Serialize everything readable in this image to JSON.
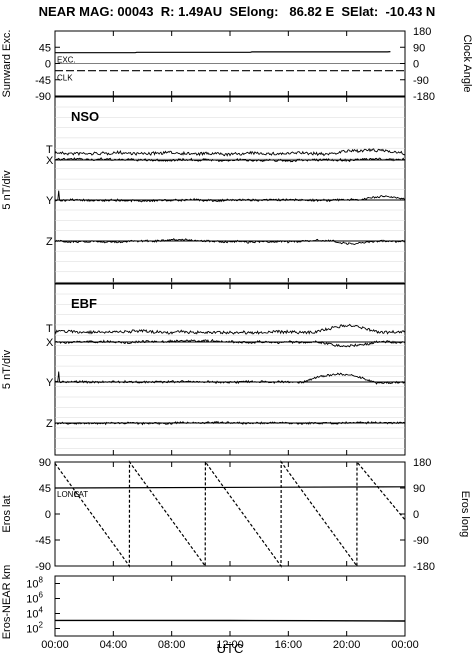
{
  "title": "NEAR MAG: 00043  R: 1.49AU  SElong:   86.82 E  SElat:  -10.43 N",
  "x_ticks": [
    "00:00",
    "04:00",
    "08:00",
    "12:00",
    "16:00",
    "20:00",
    "00:00"
  ],
  "x_axis_label": "UTC",
  "chart_data": [
    {
      "type": "line",
      "panel": "sunward-clock",
      "ylabel": "Sunward Exc.",
      "ylabel_right": "Clock Angle",
      "yticks": [
        "45",
        "0",
        "-45",
        "-90"
      ],
      "yticks_right": [
        "180",
        "90",
        "0",
        "-90",
        "-180"
      ],
      "ylim": [
        -90,
        90
      ],
      "ylim_right": [
        -180,
        180
      ],
      "series": [
        {
          "name": "EXC.",
          "x_hours": [
            0,
            5.5,
            5.6,
            13.4,
            13.5,
            22.8,
            23
          ],
          "values": [
            30,
            30,
            31,
            31,
            32,
            32,
            33
          ],
          "style": "solid"
        },
        {
          "name": "CLK",
          "x_hours": [
            0,
            24
          ],
          "values": [
            -20,
            -20
          ],
          "style": "dashed"
        }
      ]
    },
    {
      "type": "line",
      "panel": "nso",
      "label": "NSO",
      "ylabel": "5 nT/div",
      "traces": [
        "T",
        "X",
        "Y",
        "Z"
      ]
    },
    {
      "type": "line",
      "panel": "ebf",
      "label": "EBF",
      "ylabel": "5 nT/div",
      "traces": [
        "T",
        "X",
        "Y",
        "Z"
      ]
    },
    {
      "type": "line",
      "panel": "eros-lat-long",
      "ylabel": "Eros lat",
      "ylabel_right": "Eros long",
      "yticks": [
        "90",
        "45",
        "0",
        "-45",
        "-90"
      ],
      "yticks_right": [
        "180",
        "90",
        "0",
        "-90",
        "-180"
      ],
      "ylim": [
        -90,
        90
      ],
      "ylim_right": [
        -180,
        180
      ],
      "series": [
        {
          "name": "LAT",
          "x_hours": [
            0,
            24
          ],
          "values": [
            45,
            47
          ]
        },
        {
          "name": "LONG",
          "x_hours": [
            0,
            5.1,
            5.11,
            10.3,
            10.31,
            15.5,
            15.51,
            20.7,
            20.71,
            24
          ],
          "values": [
            175,
            -180,
            180,
            -180,
            180,
            -180,
            180,
            -180,
            180,
            -20
          ]
        }
      ],
      "annotations": [
        "LONG",
        "LAT"
      ]
    },
    {
      "type": "line",
      "panel": "eros-near-km",
      "ylabel": "Eros-NEAR km",
      "yscale": "log",
      "yticks": [
        "10^8",
        "10^6",
        "10^4",
        "10^2"
      ],
      "series": [
        {
          "name": "range",
          "x_hours": [
            0,
            12,
            18,
            24
          ],
          "values": [
            1200,
            1150,
            1100,
            1000
          ]
        }
      ]
    }
  ]
}
